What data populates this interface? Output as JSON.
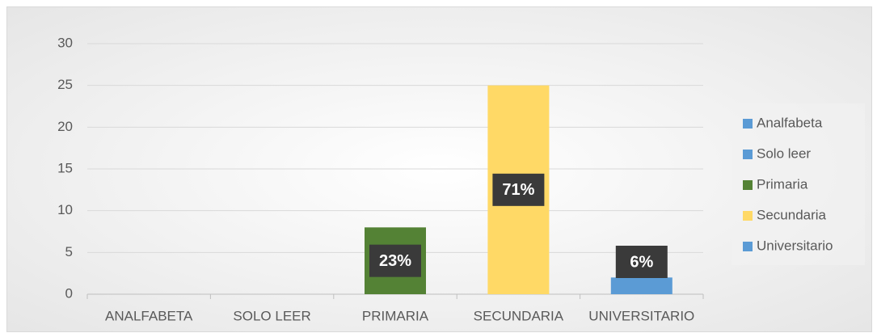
{
  "chart_data": {
    "type": "bar",
    "categories": [
      "ANALFABETA",
      "SOLO LEER",
      "PRIMARIA",
      "SECUNDARIA",
      "UNIVERSITARIO"
    ],
    "values": [
      0,
      0,
      8,
      25,
      2
    ],
    "value_labels": [
      null,
      null,
      "23%",
      "71%",
      "6%"
    ],
    "colors": [
      "#5b9bd5",
      "#5b9bd5",
      "#548235",
      "#ffd966",
      "#5b9bd5"
    ],
    "legend_labels": [
      "Analfabeta",
      "Solo leer",
      "Primaria",
      "Secundaria",
      "Universitario"
    ],
    "ylim": [
      0,
      30
    ],
    "yticks": [
      0,
      5,
      10,
      15,
      20,
      25,
      30
    ],
    "grid": true,
    "legend": "right"
  }
}
